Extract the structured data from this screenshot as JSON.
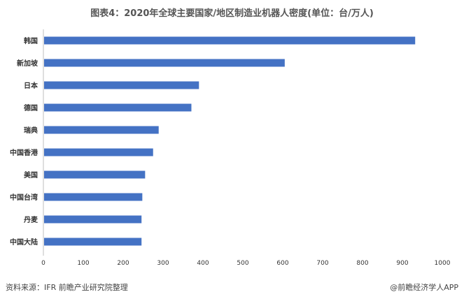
{
  "chart_data": {
    "type": "bar",
    "orientation": "horizontal",
    "title": "图表4：2020年全球主要国家/地区制造业机器人密度(单位：台/万人)",
    "categories": [
      "韩国",
      "新加坡",
      "日本",
      "德国",
      "瑞典",
      "中国香港",
      "美国",
      "中国台湾",
      "丹麦",
      "中国大陆"
    ],
    "values": [
      932,
      605,
      390,
      371,
      289,
      275,
      255,
      248,
      246,
      246
    ],
    "xlim": [
      0,
      1000
    ],
    "xticks": [
      0,
      100,
      200,
      300,
      400,
      500,
      600,
      700,
      800,
      900,
      1000
    ],
    "bar_color": "#4472C4",
    "grid": false
  },
  "footer": {
    "source": "资料来源：IFR 前瞻产业研究院整理",
    "credit": "@前瞻经济学人APP"
  }
}
